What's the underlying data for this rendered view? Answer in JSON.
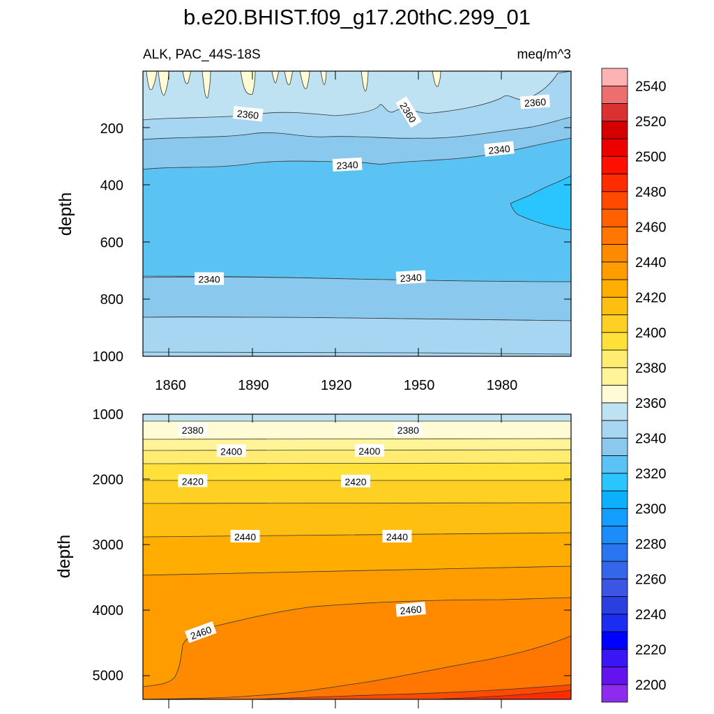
{
  "chart_data": [
    {
      "type": "contour",
      "panel": "upper",
      "title": "b.e20.BHIST.f09_g17.20thC.299_01",
      "left_subtitle": "ALK, PAC_44S-18S",
      "right_subtitle": "meq/m^3",
      "xlabel": "",
      "ylabel": "depth",
      "xlim": [
        1850,
        2005
      ],
      "ylim": [
        1000,
        0
      ],
      "xticks": [
        1860,
        1890,
        1920,
        1950,
        1980
      ],
      "xtick_labels": [
        "1860",
        "1890",
        "1920",
        "1950",
        "1980"
      ],
      "yticks": [
        200,
        400,
        600,
        800,
        1000
      ],
      "ytick_labels": [
        "200",
        "400",
        "600",
        "800",
        "1000"
      ],
      "contour_labels": [
        {
          "text": "2360",
          "x": 1888,
          "y": 152
        },
        {
          "text": "2360",
          "x": 1946,
          "y": 145
        },
        {
          "text": "2360",
          "x": 1992,
          "y": 110
        },
        {
          "text": "2340",
          "x": 1979,
          "y": 275
        },
        {
          "text": "2340",
          "x": 1924,
          "y": 330
        },
        {
          "text": "2340",
          "x": 1874,
          "y": 730
        },
        {
          "text": "2340",
          "x": 1947,
          "y": 725
        }
      ]
    },
    {
      "type": "contour",
      "panel": "lower",
      "ylabel": "depth",
      "xlim": [
        1850,
        2005
      ],
      "ylim": [
        5370,
        1000
      ],
      "yticks": [
        1000,
        2000,
        3000,
        4000,
        5000
      ],
      "ytick_labels": [
        "1000",
        "2000",
        "3000",
        "4000",
        "5000"
      ],
      "contour_labels": [
        {
          "text": "2380",
          "x": 1868,
          "y": 1245
        },
        {
          "text": "2380",
          "x": 1946,
          "y": 1245
        },
        {
          "text": "2400",
          "x": 1882,
          "y": 1570
        },
        {
          "text": "2400",
          "x": 1932,
          "y": 1565
        },
        {
          "text": "2420",
          "x": 1868,
          "y": 2030
        },
        {
          "text": "2420",
          "x": 1927,
          "y": 2035
        },
        {
          "text": "2440",
          "x": 1887,
          "y": 2880
        },
        {
          "text": "2440",
          "x": 1942,
          "y": 2880
        },
        {
          "text": "2460",
          "x": 1947,
          "y": 4000
        },
        {
          "text": "2460",
          "x": 1871,
          "y": 4350
        }
      ]
    },
    {
      "type": "colorbar",
      "levels": [
        2200,
        2210,
        2220,
        2230,
        2240,
        2250,
        2260,
        2270,
        2280,
        2290,
        2300,
        2310,
        2320,
        2330,
        2340,
        2350,
        2360,
        2370,
        2380,
        2390,
        2400,
        2410,
        2420,
        2430,
        2440,
        2450,
        2460,
        2470,
        2480,
        2490,
        2500,
        2510,
        2520,
        2530,
        2540,
        2550
      ],
      "tick_labels": [
        "2200",
        "2220",
        "2240",
        "2260",
        "2280",
        "2300",
        "2320",
        "2340",
        "2360",
        "2380",
        "2400",
        "2420",
        "2440",
        "2460",
        "2480",
        "2500",
        "2520",
        "2540"
      ],
      "colors": [
        "#8d2bee",
        "#6314ee",
        "#3b16f5",
        "#0000ff",
        "#1a2df0",
        "#2a3fe0",
        "#3c55e2",
        "#3566ea",
        "#2a76f0",
        "#1c8cf9",
        "#149eff",
        "#0cb0ff",
        "#2ac4ff",
        "#5bc3f4",
        "#8ac8ee",
        "#a6d6f2",
        "#bfe2f3",
        "#fffbd5",
        "#fff498",
        "#ffec70",
        "#ffe13a",
        "#ffd024",
        "#ffbf11",
        "#ffad00",
        "#ff9c00",
        "#ff8a00",
        "#ff7600",
        "#ff6100",
        "#ff4a00",
        "#ff2c00",
        "#ff1000",
        "#ee0000",
        "#d40000",
        "#da3232",
        "#ec6e6e",
        "#fdb3b3"
      ]
    }
  ]
}
